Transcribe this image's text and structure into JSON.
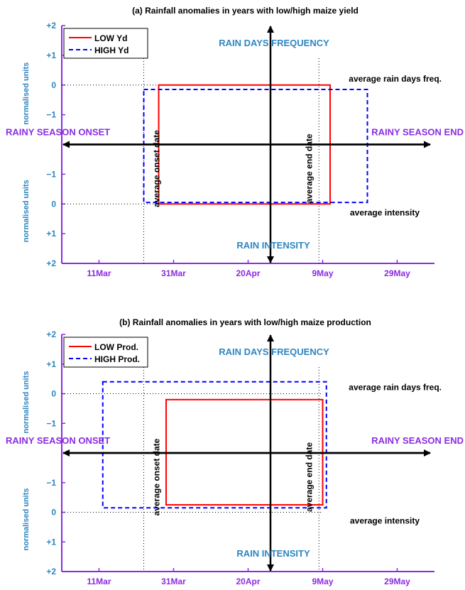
{
  "colors": {
    "axis": "#8b2be2",
    "yaxis_text": "#2e86c1",
    "corner_text": "#8b2be2",
    "low": "#ff0000",
    "high": "#0000ff",
    "ref": "#000000"
  },
  "chart_data": [
    {
      "type": "line",
      "title": "(a) Rainfall anomalies in years with low/high maize yield",
      "xtick_labels": [
        "11Mar",
        "31Mar",
        "20Apr",
        "9May",
        "29May"
      ],
      "ytick_labels_upper": [
        "+2",
        "+1",
        "0",
        "−1"
      ],
      "ytick_labels_lower": [
        "−1",
        "0",
        "+1",
        "+2"
      ],
      "ylabel_upper": "normalised units",
      "ylabel_lower": "normalised units",
      "xlim_days": [
        0,
        100
      ],
      "upper_ylim": [
        -2,
        2
      ],
      "lower_ylim": [
        -2,
        2
      ],
      "x_ticks_days": [
        10,
        30,
        50,
        70,
        90
      ],
      "ref_onset_day": 22,
      "ref_end_day": 69,
      "axis_center_day": 56,
      "annotations": {
        "top": "RAIN DAYS FREQUENCY",
        "bottom": "RAIN INTENSITY",
        "left": "RAINY SEASON ONSET",
        "right": "RAINY SEASON END",
        "rain_days_ref": "average rain days freq.",
        "intensity_ref": "average intensity",
        "onset_ref": "average onset date",
        "end_ref": "average end date"
      },
      "series": [
        {
          "name": "LOW Yd",
          "style": "solid",
          "color": "#ff0000",
          "onset_day": 26,
          "end_day": 72,
          "rain_days_anom": 0.0,
          "intensity_anom": 0.0
        },
        {
          "name": "HIGH Yd",
          "style": "dashed",
          "color": "#0000ff",
          "onset_day": 22,
          "end_day": 82,
          "rain_days_anom": -0.15,
          "intensity_anom": -0.05
        }
      ]
    },
    {
      "type": "line",
      "title": "(b) Rainfall anomalies in years with low/high maize production",
      "xtick_labels": [
        "11Mar",
        "31Mar",
        "20Apr",
        "9May",
        "29May"
      ],
      "ytick_labels_upper": [
        "+2",
        "+1",
        "0",
        "−1"
      ],
      "ytick_labels_lower": [
        "−1",
        "0",
        "+1",
        "+2"
      ],
      "ylabel_upper": "normalised units",
      "ylabel_lower": "normalised units",
      "xlim_days": [
        0,
        100
      ],
      "upper_ylim": [
        -2,
        2
      ],
      "lower_ylim": [
        -2,
        2
      ],
      "x_ticks_days": [
        10,
        30,
        50,
        70,
        90
      ],
      "ref_onset_day": 22,
      "ref_end_day": 69,
      "axis_center_day": 56,
      "annotations": {
        "top": "RAIN DAYS FREQUENCY",
        "bottom": "RAIN INTENSITY",
        "left": "RAINY SEASON ONSET",
        "right": "RAINY SEASON END",
        "rain_days_ref": "average rain days freq.",
        "intensity_ref": "average intensity",
        "onset_ref": "average onset date",
        "end_ref": "average end date"
      },
      "series": [
        {
          "name": "LOW Prod.",
          "style": "solid",
          "color": "#ff0000",
          "onset_day": 28,
          "end_day": 70,
          "rain_days_anom": -0.2,
          "intensity_anom": -0.25
        },
        {
          "name": "HIGH Prod.",
          "style": "dashed",
          "color": "#0000ff",
          "onset_day": 11,
          "end_day": 71,
          "rain_days_anom": 0.4,
          "intensity_anom": -0.15
        }
      ]
    }
  ]
}
